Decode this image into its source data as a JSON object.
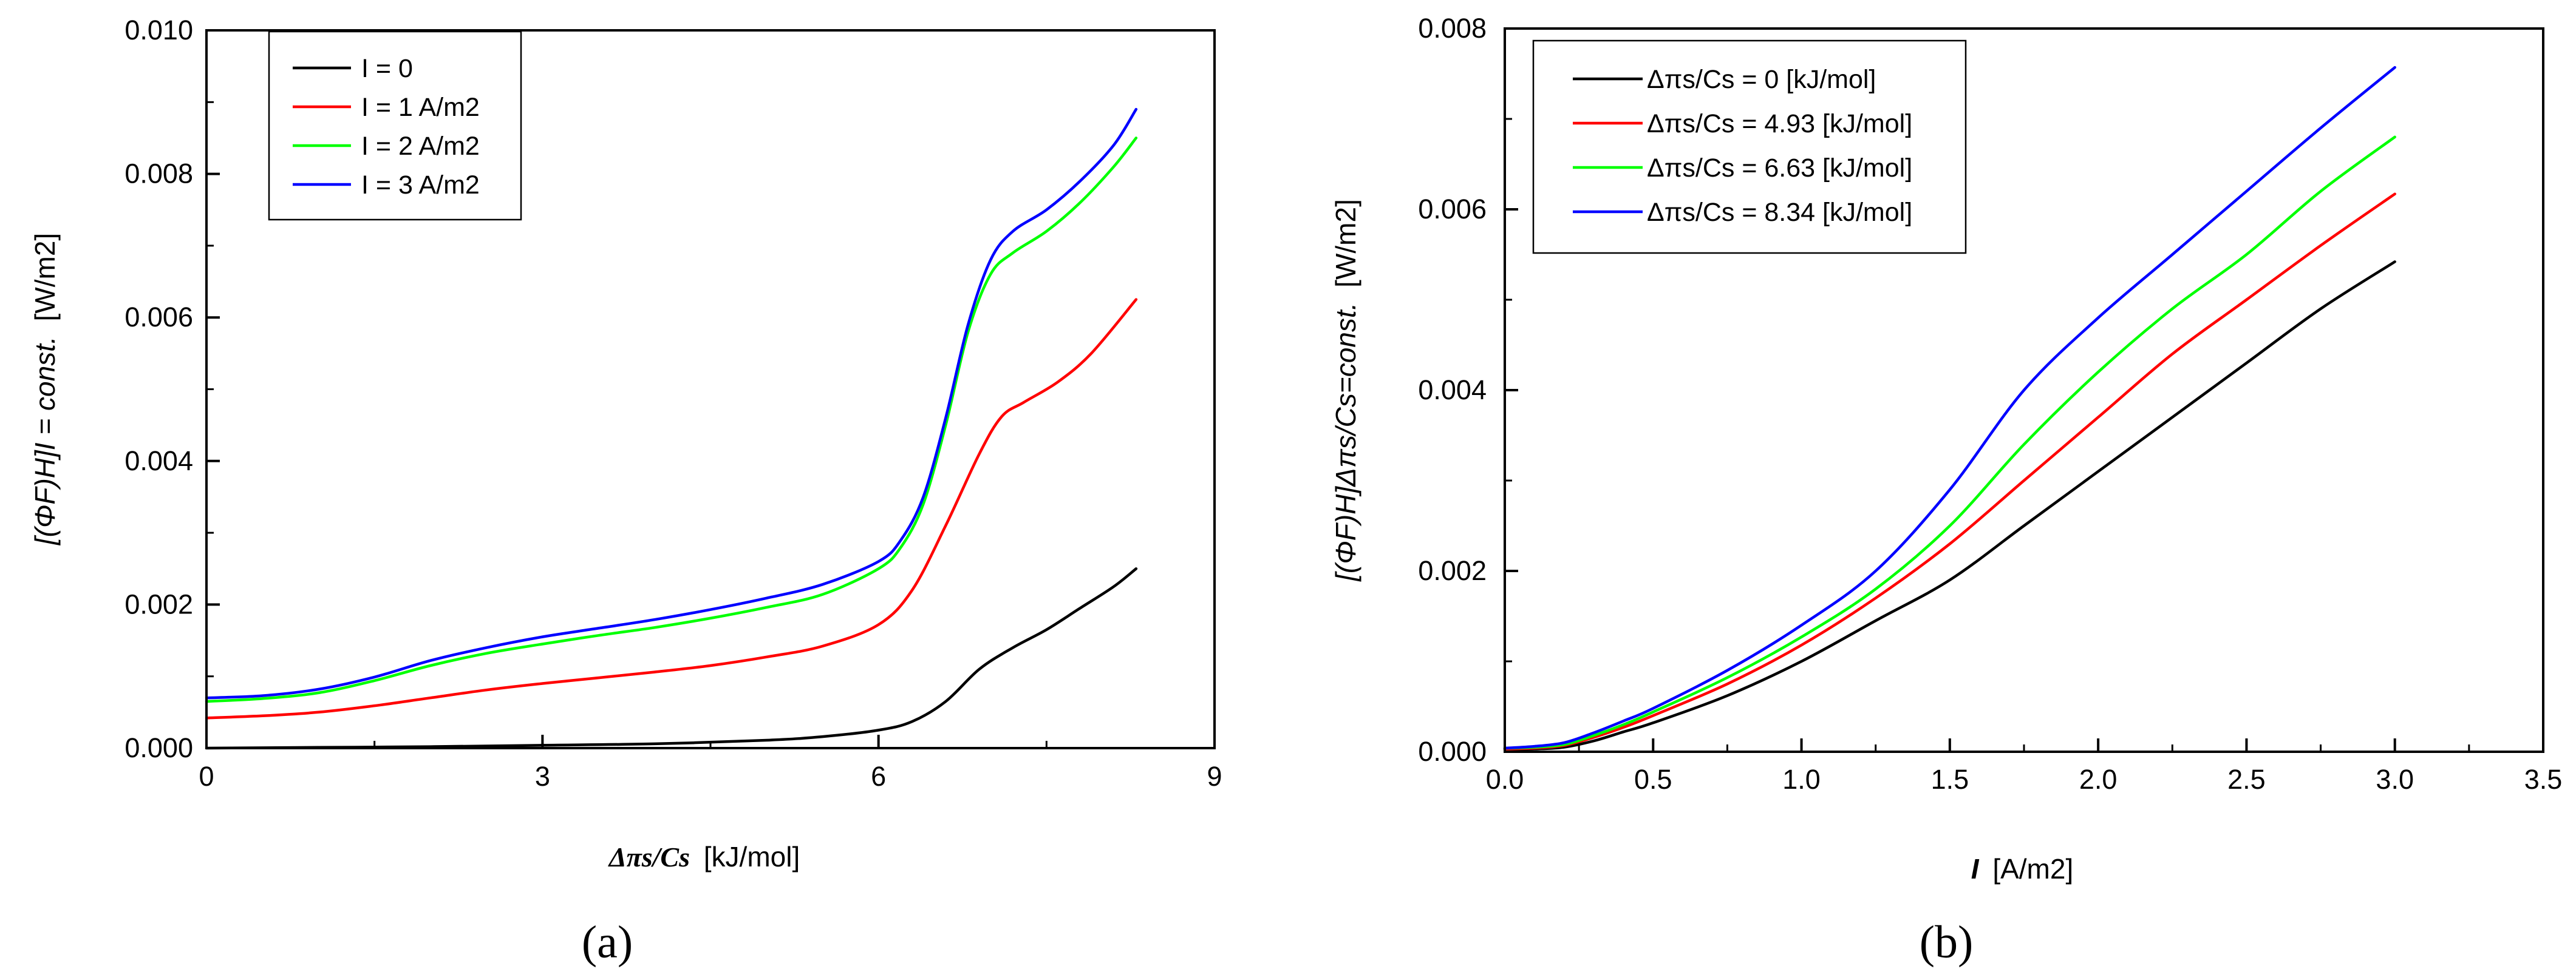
{
  "chart_data": [
    {
      "type": "line",
      "panel_label": "(a)",
      "xlabel": {
        "symbol": "Δπs/Cs",
        "unit": "[kJ/mol]"
      },
      "ylabel": {
        "symbol": "[(ΦF)H]I = const.",
        "unit": "[W/m2]"
      },
      "xlim": [
        0,
        9
      ],
      "ylim": [
        0,
        0.01
      ],
      "xticks": [
        0,
        3,
        6,
        9
      ],
      "xtick_labels": [
        "0",
        "3",
        "6",
        "9"
      ],
      "yticks": [
        0,
        0.002,
        0.004,
        0.006,
        0.008,
        0.01
      ],
      "ytick_labels": [
        "0.000",
        "0.002",
        "0.004",
        "0.006",
        "0.008",
        "0.010"
      ],
      "grid": false,
      "legend_position": "top-left",
      "series": [
        {
          "name": "I = 0",
          "color": "#000000",
          "x": [
            0,
            1,
            2,
            3,
            4,
            5,
            5.5,
            6,
            6.3,
            6.6,
            6.9,
            7.2,
            7.5,
            7.8,
            8.1,
            8.3
          ],
          "y": [
            0,
            1e-05,
            2e-05,
            4e-05,
            6e-05,
            0.00011,
            0.00016,
            0.00025,
            0.00037,
            0.00065,
            0.0011,
            0.0014,
            0.00165,
            0.00195,
            0.00225,
            0.0025
          ]
        },
        {
          "name": "I = 1 A/m2",
          "color": "#ff0000",
          "x": [
            0,
            0.5,
            1,
            1.5,
            2,
            2.5,
            3,
            3.5,
            4,
            4.5,
            5,
            5.5,
            6,
            6.3,
            6.6,
            6.9,
            7.1,
            7.3,
            7.6,
            7.9,
            8.3
          ],
          "y": [
            0.00042,
            0.00045,
            0.0005,
            0.00059,
            0.0007,
            0.00081,
            0.0009,
            0.00098,
            0.00106,
            0.00115,
            0.00127,
            0.00142,
            0.00172,
            0.0022,
            0.0031,
            0.0041,
            0.00462,
            0.00482,
            0.0051,
            0.0055,
            0.00625
          ]
        },
        {
          "name": "I = 2 A/m2",
          "color": "#00ff00",
          "x": [
            0,
            0.5,
            1,
            1.5,
            2,
            2.5,
            3,
            3.5,
            4,
            4.5,
            5,
            5.5,
            6,
            6.2,
            6.4,
            6.6,
            6.8,
            7.0,
            7.2,
            7.5,
            7.8,
            8.1,
            8.3
          ],
          "y": [
            0.00065,
            0.00069,
            0.00077,
            0.00094,
            0.00115,
            0.00132,
            0.00145,
            0.00157,
            0.00168,
            0.00181,
            0.00196,
            0.00214,
            0.0025,
            0.0028,
            0.0034,
            0.0045,
            0.0058,
            0.0066,
            0.0069,
            0.0072,
            0.0076,
            0.0081,
            0.0085
          ]
        },
        {
          "name": "I = 3 A/m2",
          "color": "#0000ff",
          "x": [
            0,
            0.5,
            1,
            1.5,
            2,
            2.5,
            3,
            3.5,
            4,
            4.5,
            5,
            5.5,
            6,
            6.2,
            6.4,
            6.6,
            6.8,
            7.0,
            7.2,
            7.5,
            7.8,
            8.1,
            8.3
          ],
          "y": [
            0.0007,
            0.00073,
            0.00082,
            0.00099,
            0.00122,
            0.0014,
            0.00155,
            0.00167,
            0.00179,
            0.00193,
            0.00209,
            0.00228,
            0.0026,
            0.0029,
            0.0035,
            0.0046,
            0.0059,
            0.0068,
            0.0072,
            0.0075,
            0.0079,
            0.0084,
            0.0089
          ]
        }
      ]
    },
    {
      "type": "line",
      "panel_label": "(b)",
      "xlabel": {
        "symbol": "I",
        "unit": "[A/m2]"
      },
      "ylabel": {
        "symbol": "[(ΦF)H]Δπs/Cs=const.",
        "unit": "[W/m2]"
      },
      "xlim": [
        0,
        3.5
      ],
      "ylim": [
        0,
        0.008
      ],
      "xticks": [
        0,
        0.5,
        1.0,
        1.5,
        2.0,
        2.5,
        3.0,
        3.5
      ],
      "xtick_labels": [
        "0.0",
        "0.5",
        "1.0",
        "1.5",
        "2.0",
        "2.5",
        "3.0",
        "3.5"
      ],
      "yticks": [
        0,
        0.002,
        0.004,
        0.006,
        0.008
      ],
      "ytick_labels": [
        "0.000",
        "0.002",
        "0.004",
        "0.006",
        "0.008"
      ],
      "grid": false,
      "legend_position": "top-left",
      "series": [
        {
          "name": "Δπs/Cs = 0 [kJ/mol]",
          "color": "#000000",
          "x": [
            0,
            0.1,
            0.2,
            0.3,
            0.4,
            0.5,
            0.75,
            1.0,
            1.25,
            1.5,
            1.75,
            2.0,
            2.25,
            2.5,
            2.75,
            3.0
          ],
          "y": [
            3e-05,
            3e-05,
            5e-05,
            0.00012,
            0.00022,
            0.00032,
            0.00062,
            0.001,
            0.00145,
            0.0019,
            0.0025,
            0.0031,
            0.0037,
            0.0043,
            0.0049,
            0.00542
          ]
        },
        {
          "name": "Δπs/Cs = 4.93 [kJ/mol]",
          "color": "#ff0000",
          "x": [
            0,
            0.1,
            0.2,
            0.3,
            0.4,
            0.5,
            0.75,
            1.0,
            1.25,
            1.5,
            1.75,
            2.0,
            2.25,
            2.5,
            2.75,
            3.0
          ],
          "y": [
            3e-05,
            4e-05,
            7e-05,
            0.00016,
            0.00027,
            0.0004,
            0.00075,
            0.00118,
            0.0017,
            0.0023,
            0.003,
            0.0037,
            0.0044,
            0.005,
            0.0056,
            0.00617
          ]
        },
        {
          "name": "Δπs/Cs = 6.63 [kJ/mol]",
          "color": "#00ff00",
          "x": [
            0,
            0.1,
            0.2,
            0.3,
            0.4,
            0.5,
            0.75,
            1.0,
            1.25,
            1.5,
            1.75,
            2.0,
            2.25,
            2.5,
            2.75,
            3.0
          ],
          "y": [
            4e-05,
            5e-05,
            8e-05,
            0.00018,
            0.0003,
            0.00044,
            0.00082,
            0.00127,
            0.0018,
            0.0025,
            0.0034,
            0.0042,
            0.0049,
            0.0055,
            0.0062,
            0.0068
          ]
        },
        {
          "name": "Δπs/Cs = 8.34 [kJ/mol]",
          "color": "#0000ff",
          "x": [
            0,
            0.1,
            0.2,
            0.3,
            0.4,
            0.5,
            0.75,
            1.0,
            1.25,
            1.5,
            1.75,
            2.0,
            2.25,
            2.5,
            2.75,
            3.0
          ],
          "y": [
            4e-05,
            6e-05,
            0.0001,
            0.00021,
            0.00034,
            0.00048,
            0.0009,
            0.0014,
            0.002,
            0.0029,
            0.004,
            0.0048,
            0.0055,
            0.0062,
            0.0069,
            0.00757
          ]
        }
      ]
    }
  ]
}
